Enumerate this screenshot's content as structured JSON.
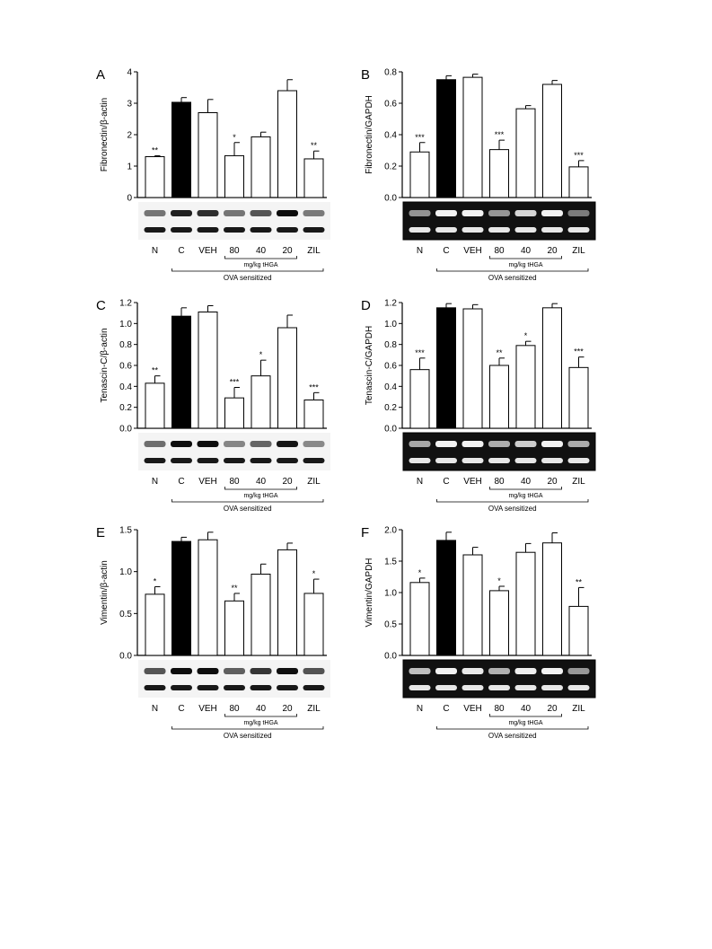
{
  "categories": [
    "N",
    "C",
    "VEH",
    "80",
    "40",
    "20",
    "ZIL"
  ],
  "dose_label": "mg/kg tHGA",
  "group_label": "OVA sensitized",
  "chart_data": [
    {
      "panel": "A",
      "type": "bar",
      "ylabel": "Fibronectin/β-actin",
      "ylim": [
        0,
        4
      ],
      "yticks": [
        "0",
        "1",
        "2",
        "3",
        "4"
      ],
      "categories": [
        "N",
        "C",
        "VEH",
        "80",
        "40",
        "20",
        "ZIL"
      ],
      "values": [
        1.3,
        3.03,
        2.7,
        1.33,
        1.93,
        3.4,
        1.23
      ],
      "errors": [
        0.03,
        0.15,
        0.42,
        0.42,
        0.15,
        0.35,
        0.25
      ],
      "significance": [
        "**",
        "",
        "",
        "*",
        "",
        "",
        "**"
      ],
      "fills": [
        "#ffffff",
        "#000000",
        "#ffffff",
        "#ffffff",
        "#ffffff",
        "#ffffff",
        "#ffffff"
      ],
      "blot": "western"
    },
    {
      "panel": "B",
      "type": "bar",
      "ylabel": "Fibronectin/GAPDH",
      "ylim": [
        0,
        0.8
      ],
      "yticks": [
        "0.0",
        "0.2",
        "0.4",
        "0.6",
        "0.8"
      ],
      "categories": [
        "N",
        "C",
        "VEH",
        "80",
        "40",
        "20",
        "ZIL"
      ],
      "values": [
        0.29,
        0.75,
        0.765,
        0.305,
        0.565,
        0.72,
        0.195
      ],
      "errors": [
        0.06,
        0.025,
        0.02,
        0.06,
        0.02,
        0.025,
        0.04
      ],
      "significance": [
        "***",
        "",
        "",
        "***",
        "",
        "",
        "***"
      ],
      "fills": [
        "#ffffff",
        "#000000",
        "#ffffff",
        "#ffffff",
        "#ffffff",
        "#ffffff",
        "#ffffff"
      ],
      "blot": "gel"
    },
    {
      "panel": "C",
      "type": "bar",
      "ylabel": "Tenascin-C/β-actin",
      "ylim": [
        0,
        1.2
      ],
      "yticks": [
        "0.0",
        "0.2",
        "0.4",
        "0.6",
        "0.8",
        "1.0",
        "1.2"
      ],
      "categories": [
        "N",
        "C",
        "VEH",
        "80",
        "40",
        "20",
        "ZIL"
      ],
      "values": [
        0.43,
        1.07,
        1.11,
        0.29,
        0.5,
        0.96,
        0.27
      ],
      "errors": [
        0.07,
        0.08,
        0.06,
        0.1,
        0.15,
        0.12,
        0.07
      ],
      "significance": [
        "**",
        "",
        "",
        "***",
        "*",
        "",
        "***"
      ],
      "fills": [
        "#ffffff",
        "#000000",
        "#ffffff",
        "#ffffff",
        "#ffffff",
        "#ffffff",
        "#ffffff"
      ],
      "blot": "western"
    },
    {
      "panel": "D",
      "type": "bar",
      "ylabel": "Tenascin-C/GAPDH",
      "ylim": [
        0,
        1.2
      ],
      "yticks": [
        "0.0",
        "0.2",
        "0.4",
        "0.6",
        "0.8",
        "1.0",
        "1.2"
      ],
      "categories": [
        "N",
        "C",
        "VEH",
        "80",
        "40",
        "20",
        "ZIL"
      ],
      "values": [
        0.56,
        1.15,
        1.14,
        0.6,
        0.79,
        1.15,
        0.58
      ],
      "errors": [
        0.11,
        0.04,
        0.04,
        0.07,
        0.04,
        0.04,
        0.1
      ],
      "significance": [
        "***",
        "",
        "",
        "**",
        "*",
        "",
        "***"
      ],
      "fills": [
        "#ffffff",
        "#000000",
        "#ffffff",
        "#ffffff",
        "#ffffff",
        "#ffffff",
        "#ffffff"
      ],
      "blot": "gel"
    },
    {
      "panel": "E",
      "type": "bar",
      "ylabel": "Vimentin/β-actin",
      "ylim": [
        0,
        1.5
      ],
      "yticks": [
        "0.0",
        "0.5",
        "1.0",
        "1.5"
      ],
      "categories": [
        "N",
        "C",
        "VEH",
        "80",
        "40",
        "20",
        "ZIL"
      ],
      "values": [
        0.73,
        1.36,
        1.38,
        0.65,
        0.97,
        1.26,
        0.74
      ],
      "errors": [
        0.09,
        0.05,
        0.09,
        0.09,
        0.12,
        0.08,
        0.17
      ],
      "significance": [
        "*",
        "",
        "",
        "**",
        "",
        "",
        "*"
      ],
      "fills": [
        "#ffffff",
        "#000000",
        "#ffffff",
        "#ffffff",
        "#ffffff",
        "#ffffff",
        "#ffffff"
      ],
      "blot": "western"
    },
    {
      "panel": "F",
      "type": "bar",
      "ylabel": "Vimentin/GAPDH",
      "ylim": [
        0,
        2.0
      ],
      "yticks": [
        "0.0",
        "0.5",
        "1.0",
        "1.5",
        "2.0"
      ],
      "categories": [
        "N",
        "C",
        "VEH",
        "80",
        "40",
        "20",
        "ZIL"
      ],
      "values": [
        1.16,
        1.83,
        1.6,
        1.03,
        1.64,
        1.79,
        0.78
      ],
      "errors": [
        0.07,
        0.13,
        0.12,
        0.07,
        0.14,
        0.16,
        0.3
      ],
      "significance": [
        "*",
        "",
        "",
        "*",
        "",
        "",
        "**"
      ],
      "fills": [
        "#ffffff",
        "#000000",
        "#ffffff",
        "#ffffff",
        "#ffffff",
        "#ffffff",
        "#ffffff"
      ],
      "blot": "gel"
    }
  ]
}
